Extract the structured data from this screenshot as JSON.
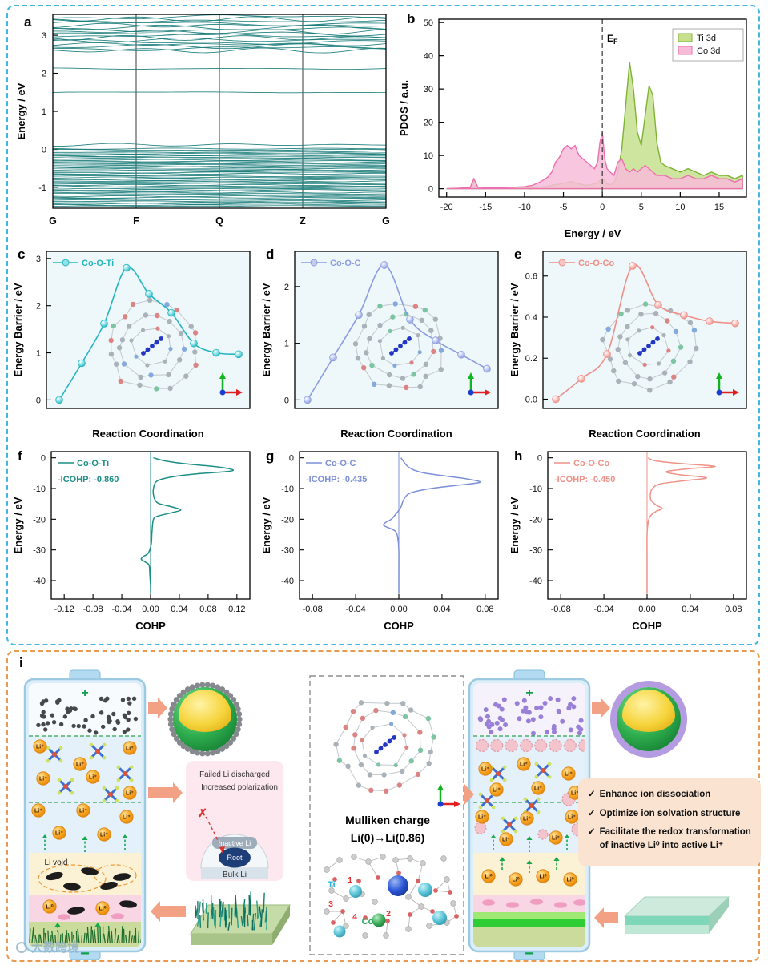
{
  "panels": {
    "a": "a",
    "b": "b",
    "c": "c",
    "d": "d",
    "e": "e",
    "f": "f",
    "g": "g",
    "h": "h",
    "i": "i"
  },
  "chart_data": [
    {
      "id": "a",
      "type": "line",
      "kind": "band-structure",
      "ylabel": "Energy / eV",
      "kpoints": [
        "G",
        "F",
        "Q",
        "Z",
        "G"
      ],
      "yticks": [
        -1,
        0,
        1,
        2,
        3
      ],
      "ylim": [
        -1.55,
        3.55
      ],
      "color": "#20807e",
      "band_groups": [
        {
          "from": -1.5,
          "to": 0.04,
          "step": 0.033,
          "amp": 0.012
        },
        {
          "flat": [
            0.12
          ],
          "amp": 0.03
        },
        {
          "flat": [
            1.5
          ],
          "amp": 0.01
        },
        {
          "flat": [
            2.12
          ],
          "amp": 0.02
        },
        {
          "from": 2.6,
          "to": 3.48,
          "step": 0.055,
          "amp": 0.05
        }
      ]
    },
    {
      "id": "b",
      "type": "area",
      "kind": "pdos",
      "xlabel": "Energy / eV",
      "ylabel": "PDOS / a.u.",
      "xlim": [
        -21,
        18.5
      ],
      "ylim": [
        -2.5,
        51
      ],
      "xticks": [
        -20,
        -15,
        -10,
        -5,
        0,
        5,
        10,
        15
      ],
      "yticks": [
        0,
        10,
        20,
        30,
        40,
        50
      ],
      "fermi_x": 0,
      "fermi_label_main": "E",
      "fermi_label_sub": "F",
      "x": [
        -20,
        -17,
        -16.5,
        -16,
        -15,
        -13,
        -11,
        -10,
        -9,
        -8,
        -7,
        -6.5,
        -6,
        -5.5,
        -5,
        -4.5,
        -4,
        -3.5,
        -3,
        -2.5,
        -2,
        -1.5,
        -1,
        -0.6,
        -0.3,
        0,
        0.3,
        0.6,
        1,
        1.5,
        2,
        2.5,
        3,
        3.5,
        4,
        4.5,
        5,
        5.5,
        6,
        6.5,
        7,
        7.5,
        8,
        9,
        10,
        11,
        12,
        13,
        14,
        15,
        16,
        17,
        18
      ],
      "series": [
        {
          "name": "Ti 3d",
          "color": "#7fb335",
          "fill": "#c6e08e",
          "y": [
            0,
            0.2,
            2.2,
            0.3,
            0.2,
            0.2,
            0.3,
            0.3,
            0.4,
            0.5,
            0.8,
            1,
            1.2,
            1.4,
            1.6,
            1.9,
            2.1,
            1.8,
            1.5,
            1.2,
            1,
            1.2,
            1.5,
            1.8,
            2.5,
            3.2,
            2.2,
            1.5,
            1.2,
            1.8,
            5,
            12,
            25,
            38,
            30,
            17,
            13,
            22,
            31,
            28,
            14,
            8,
            7,
            6,
            5,
            6,
            5,
            4,
            5,
            4,
            4,
            3,
            4
          ]
        },
        {
          "name": "Co 3d",
          "color": "#ee6fae",
          "fill": "#f8bcd9",
          "y": [
            0,
            0.3,
            3,
            0.5,
            0.3,
            0.3,
            0.5,
            0.6,
            1,
            2,
            3.5,
            5,
            8,
            9.5,
            12,
            13,
            12,
            13,
            10,
            9,
            8,
            7,
            6,
            8,
            14,
            17,
            9,
            6,
            5,
            4,
            8,
            9,
            6,
            5,
            6,
            5,
            6,
            7,
            6,
            5,
            4,
            4,
            4,
            3,
            3,
            4,
            3,
            3,
            4,
            3,
            3,
            2,
            3
          ]
        }
      ]
    },
    {
      "id": "c",
      "type": "line",
      "kind": "neb",
      "legend": "Co-O-Ti",
      "xlabel": "Reaction Coordination",
      "ylabel": "Energy Barrier / eV",
      "yticks": [
        0,
        1,
        2,
        3
      ],
      "ydec": 0,
      "ylim": [
        -0.18,
        3.15
      ],
      "values": [
        0,
        0.78,
        1.62,
        2.8,
        2.25,
        1.85,
        1.2,
        1.0,
        0.97
      ],
      "color": "#25b5c0",
      "marker": "#8fe3e8"
    },
    {
      "id": "d",
      "type": "line",
      "kind": "neb",
      "legend": "Co-O-C",
      "xlabel": "Reaction Coordination",
      "ylabel": "Energy Barrier / eV",
      "yticks": [
        0,
        1,
        2
      ],
      "ydec": 0,
      "ylim": [
        -0.15,
        2.62
      ],
      "values": [
        0,
        0.75,
        1.5,
        2.38,
        1.42,
        1.05,
        0.8,
        0.55
      ],
      "color": "#8b9ce0",
      "marker": "#c3cdf2"
    },
    {
      "id": "e",
      "type": "line",
      "kind": "neb",
      "legend": "Co-O-Co",
      "xlabel": "Reaction Coordination",
      "ylabel": "Energy Barrier / eV",
      "yticks": [
        0,
        0.2,
        0.4,
        0.6
      ],
      "ydec": 1,
      "ylim": [
        -0.045,
        0.72
      ],
      "values": [
        0,
        0.1,
        0.22,
        0.65,
        0.46,
        0.41,
        0.38,
        0.37
      ],
      "color": "#ef8f88",
      "marker": "#f8c6c2"
    },
    {
      "id": "f",
      "type": "line",
      "kind": "cohp",
      "legend": "Co-O-Ti",
      "icohp": "-ICOHP: -0.860",
      "xlabel": "COHP",
      "ylabel": "Energy / eV",
      "xticks": [
        -0.12,
        -0.08,
        -0.04,
        0,
        0.04,
        0.08,
        0.12
      ],
      "xlim": [
        -0.138,
        0.138
      ],
      "yticks": [
        0,
        -10,
        -20,
        -30,
        -40
      ],
      "ylim": [
        2,
        -46
      ],
      "color": "#1d8f86",
      "points": [
        [
          0,
          0.004
        ],
        [
          -1,
          0.02
        ],
        [
          -2,
          0.05
        ],
        [
          -3,
          0.095
        ],
        [
          -4,
          0.115
        ],
        [
          -4.6,
          0.1
        ],
        [
          -5.2,
          0.065
        ],
        [
          -6,
          0.035
        ],
        [
          -7,
          0.015
        ],
        [
          -8,
          0.007
        ],
        [
          -10,
          0.004
        ],
        [
          -12,
          0.004
        ],
        [
          -14,
          0.007
        ],
        [
          -15,
          0.013
        ],
        [
          -16,
          0.03
        ],
        [
          -17,
          0.042
        ],
        [
          -18,
          0.027
        ],
        [
          -19,
          0.01
        ],
        [
          -20,
          0.004
        ],
        [
          -24,
          0.002
        ],
        [
          -28,
          0.001
        ],
        [
          -31,
          -0.003
        ],
        [
          -32,
          -0.009
        ],
        [
          -33,
          -0.013
        ],
        [
          -34,
          -0.007
        ],
        [
          -35,
          -0.002
        ],
        [
          -38,
          -0.001
        ],
        [
          -42,
          0
        ],
        [
          -44,
          0
        ]
      ]
    },
    {
      "id": "g",
      "type": "line",
      "kind": "cohp",
      "legend": "Co-O-C",
      "icohp": "-ICOHP: -0.435",
      "xlabel": "COHP",
      "ylabel": "Energy / eV",
      "xticks": [
        -0.08,
        -0.04,
        0,
        0.04,
        0.08
      ],
      "xlim": [
        -0.092,
        0.092
      ],
      "yticks": [
        0,
        -10,
        -20,
        -30,
        -40
      ],
      "ylim": [
        2,
        -46
      ],
      "color": "#7c8fd8",
      "points": [
        [
          0,
          0.002
        ],
        [
          -1,
          0.004
        ],
        [
          -2,
          0.006
        ],
        [
          -3,
          0.009
        ],
        [
          -4,
          0.014
        ],
        [
          -5,
          0.024
        ],
        [
          -6,
          0.045
        ],
        [
          -7,
          0.065
        ],
        [
          -8,
          0.075
        ],
        [
          -9,
          0.053
        ],
        [
          -10,
          0.03
        ],
        [
          -11,
          0.015
        ],
        [
          -12,
          0.008
        ],
        [
          -14,
          0.004
        ],
        [
          -16,
          0.002
        ],
        [
          -18,
          -0.002
        ],
        [
          -20,
          -0.007
        ],
        [
          -21,
          -0.012
        ],
        [
          -22,
          -0.014
        ],
        [
          -23,
          -0.008
        ],
        [
          -24,
          -0.003
        ],
        [
          -26,
          -0.001
        ],
        [
          -30,
          0
        ],
        [
          -38,
          0
        ],
        [
          -44,
          0
        ]
      ]
    },
    {
      "id": "h",
      "type": "line",
      "kind": "cohp",
      "legend": "Co-O-Co",
      "icohp": "-ICOHP: -0.450",
      "xlabel": "COHP",
      "ylabel": "Energy / eV",
      "xticks": [
        -0.08,
        -0.04,
        0,
        0.04,
        0.08
      ],
      "xlim": [
        -0.092,
        0.092
      ],
      "yticks": [
        0,
        -10,
        -20,
        -30,
        -40
      ],
      "ylim": [
        2,
        -46
      ],
      "color": "#ef9288",
      "points": [
        [
          0,
          0.001
        ],
        [
          -1,
          0.008
        ],
        [
          -2,
          0.035
        ],
        [
          -2.8,
          0.063
        ],
        [
          -3.5,
          0.04
        ],
        [
          -4.5,
          0.018
        ],
        [
          -5.5,
          0.03
        ],
        [
          -6.5,
          0.055
        ],
        [
          -7.5,
          0.034
        ],
        [
          -8.5,
          0.012
        ],
        [
          -10,
          0.005
        ],
        [
          -12,
          0.003
        ],
        [
          -14,
          0.004
        ],
        [
          -15.5,
          0.009
        ],
        [
          -16.5,
          0.014
        ],
        [
          -17.5,
          0.008
        ],
        [
          -19,
          0.003
        ],
        [
          -21,
          0.001
        ],
        [
          -25,
          0
        ],
        [
          -34,
          0
        ],
        [
          -44,
          0
        ]
      ]
    }
  ],
  "panel_i": {
    "plus": "+",
    "minus": "−",
    "li_plus": "Li⁺",
    "li_zero": "Li⁰",
    "li_void": "Li void",
    "failure": {
      "line1": "Failed Li discharged",
      "line2": "Increased polarization",
      "cross": "✗",
      "inactive": "Inactive Li",
      "root": "Root",
      "bulk": "Bulk Li"
    },
    "mulliken": {
      "title": "Mulliken charge",
      "equation": "Li(0)→Li(0.86)",
      "ti": "Ti",
      "co": "Co",
      "n1": "1",
      "n2": "2",
      "n3": "3",
      "n4": "4"
    },
    "check": "✓",
    "benefits": [
      "Enhance ion dissociation",
      "Optimize ion solvation structure",
      "Facilitate the redox transformation of inactive Li⁰ into active Li⁺"
    ],
    "watermark": "大数跨境"
  }
}
